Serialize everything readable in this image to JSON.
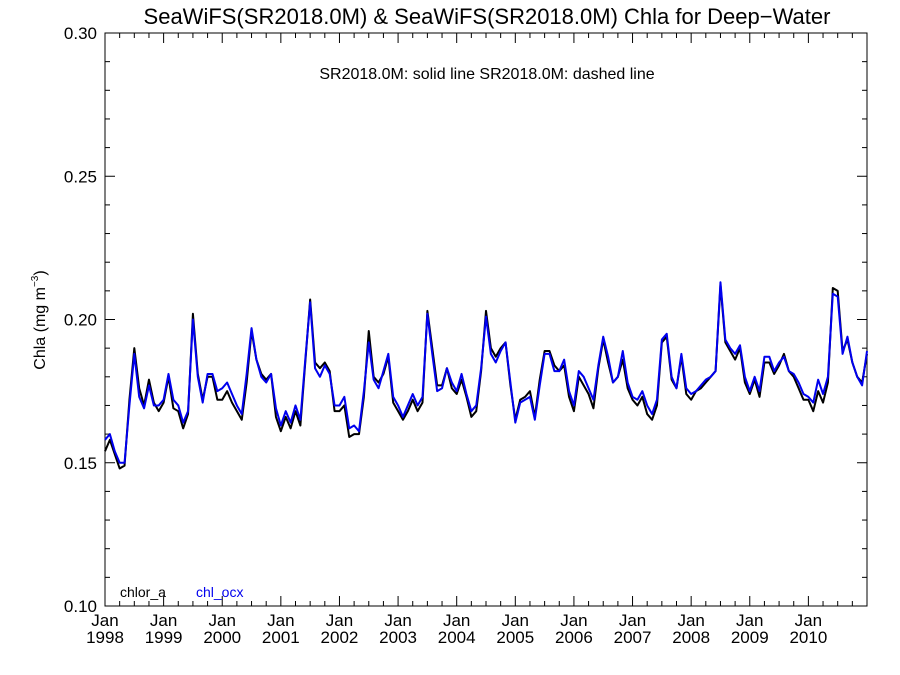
{
  "chart_data": {
    "type": "line",
    "title": "SeaWiFS(SR2018.0M) & SeaWiFS(SR2018.0M)  Chla for Deep−Water",
    "subtitle": "SR2018.0M: solid line   SR2018.0M: dashed line",
    "ylabel": "Chla (mg m",
    "ylabel_sup": "−3",
    "ylabel_close": ")",
    "ylim": [
      0.1,
      0.3
    ],
    "xlim": [
      "1998-01",
      "2011-01"
    ],
    "y_ticks": [
      "0.10",
      "0.15",
      "0.20",
      "0.25",
      "0.30"
    ],
    "x_ticks": [
      {
        "month": "Jan",
        "year": "1998"
      },
      {
        "month": "Jan",
        "year": "1999"
      },
      {
        "month": "Jan",
        "year": "2000"
      },
      {
        "month": "Jan",
        "year": "2001"
      },
      {
        "month": "Jan",
        "year": "2002"
      },
      {
        "month": "Jan",
        "year": "2003"
      },
      {
        "month": "Jan",
        "year": "2004"
      },
      {
        "month": "Jan",
        "year": "2005"
      },
      {
        "month": "Jan",
        "year": "2006"
      },
      {
        "month": "Jan",
        "year": "2007"
      },
      {
        "month": "Jan",
        "year": "2008"
      },
      {
        "month": "Jan",
        "year": "2009"
      },
      {
        "month": "Jan",
        "year": "2010"
      }
    ],
    "start_month": "1998-01",
    "series": [
      {
        "name": "chlor_a",
        "color": "#000000",
        "values": [
          0.154,
          0.158,
          0.153,
          0.148,
          0.149,
          0.172,
          0.19,
          0.176,
          0.17,
          0.179,
          0.171,
          0.168,
          0.171,
          0.18,
          0.169,
          0.168,
          0.162,
          0.167,
          0.202,
          0.181,
          0.172,
          0.18,
          0.18,
          0.172,
          0.172,
          0.175,
          0.171,
          0.168,
          0.165,
          0.178,
          0.196,
          0.186,
          0.181,
          0.179,
          0.181,
          0.166,
          0.161,
          0.166,
          0.162,
          0.168,
          0.163,
          0.185,
          0.207,
          0.185,
          0.183,
          0.185,
          0.182,
          0.168,
          0.168,
          0.17,
          0.159,
          0.16,
          0.16,
          0.173,
          0.196,
          0.18,
          0.178,
          0.181,
          0.187,
          0.171,
          0.168,
          0.165,
          0.168,
          0.172,
          0.168,
          0.171,
          0.203,
          0.19,
          0.177,
          0.177,
          0.183,
          0.176,
          0.174,
          0.179,
          0.173,
          0.166,
          0.168,
          0.182,
          0.203,
          0.19,
          0.187,
          0.19,
          0.192,
          0.177,
          0.165,
          0.172,
          0.173,
          0.175,
          0.166,
          0.179,
          0.189,
          0.189,
          0.184,
          0.182,
          0.184,
          0.173,
          0.168,
          0.18,
          0.177,
          0.174,
          0.169,
          0.183,
          0.193,
          0.185,
          0.178,
          0.18,
          0.186,
          0.176,
          0.172,
          0.17,
          0.173,
          0.167,
          0.165,
          0.17,
          0.192,
          0.194,
          0.179,
          0.176,
          0.187,
          0.174,
          0.172,
          0.175,
          0.176,
          0.178,
          0.18,
          0.182,
          0.212,
          0.192,
          0.189,
          0.186,
          0.19,
          0.178,
          0.174,
          0.179,
          0.173,
          0.185,
          0.185,
          0.181,
          0.184,
          0.188,
          0.182,
          0.18,
          0.176,
          0.172,
          0.172,
          0.168,
          0.175,
          0.171,
          0.178,
          0.211,
          0.21,
          0.189,
          0.193,
          0.185,
          0.18,
          0.178,
          0.188
        ]
      },
      {
        "name": "chl_ocx",
        "color": "#0000ee",
        "values": [
          0.158,
          0.16,
          0.154,
          0.15,
          0.15,
          0.17,
          0.188,
          0.173,
          0.169,
          0.177,
          0.17,
          0.17,
          0.172,
          0.181,
          0.172,
          0.17,
          0.164,
          0.168,
          0.2,
          0.18,
          0.171,
          0.181,
          0.181,
          0.175,
          0.176,
          0.178,
          0.174,
          0.17,
          0.167,
          0.181,
          0.197,
          0.186,
          0.18,
          0.178,
          0.181,
          0.169,
          0.163,
          0.168,
          0.164,
          0.17,
          0.165,
          0.186,
          0.206,
          0.183,
          0.18,
          0.184,
          0.181,
          0.17,
          0.17,
          0.173,
          0.162,
          0.163,
          0.161,
          0.175,
          0.192,
          0.179,
          0.176,
          0.182,
          0.188,
          0.173,
          0.17,
          0.166,
          0.17,
          0.174,
          0.17,
          0.173,
          0.202,
          0.188,
          0.175,
          0.176,
          0.183,
          0.178,
          0.175,
          0.181,
          0.174,
          0.168,
          0.17,
          0.183,
          0.201,
          0.188,
          0.185,
          0.189,
          0.192,
          0.178,
          0.164,
          0.171,
          0.172,
          0.173,
          0.165,
          0.177,
          0.188,
          0.188,
          0.182,
          0.182,
          0.186,
          0.175,
          0.17,
          0.182,
          0.18,
          0.176,
          0.172,
          0.184,
          0.194,
          0.187,
          0.178,
          0.18,
          0.189,
          0.178,
          0.173,
          0.172,
          0.175,
          0.17,
          0.167,
          0.172,
          0.193,
          0.195,
          0.18,
          0.176,
          0.188,
          0.176,
          0.174,
          0.175,
          0.177,
          0.179,
          0.18,
          0.182,
          0.213,
          0.193,
          0.19,
          0.188,
          0.191,
          0.18,
          0.175,
          0.18,
          0.175,
          0.187,
          0.187,
          0.182,
          0.185,
          0.187,
          0.182,
          0.181,
          0.178,
          0.174,
          0.173,
          0.171,
          0.179,
          0.174,
          0.18,
          0.209,
          0.208,
          0.188,
          0.194,
          0.185,
          0.18,
          0.177,
          0.189
        ]
      }
    ],
    "grid": false,
    "legend_placement": "bottom-left"
  }
}
